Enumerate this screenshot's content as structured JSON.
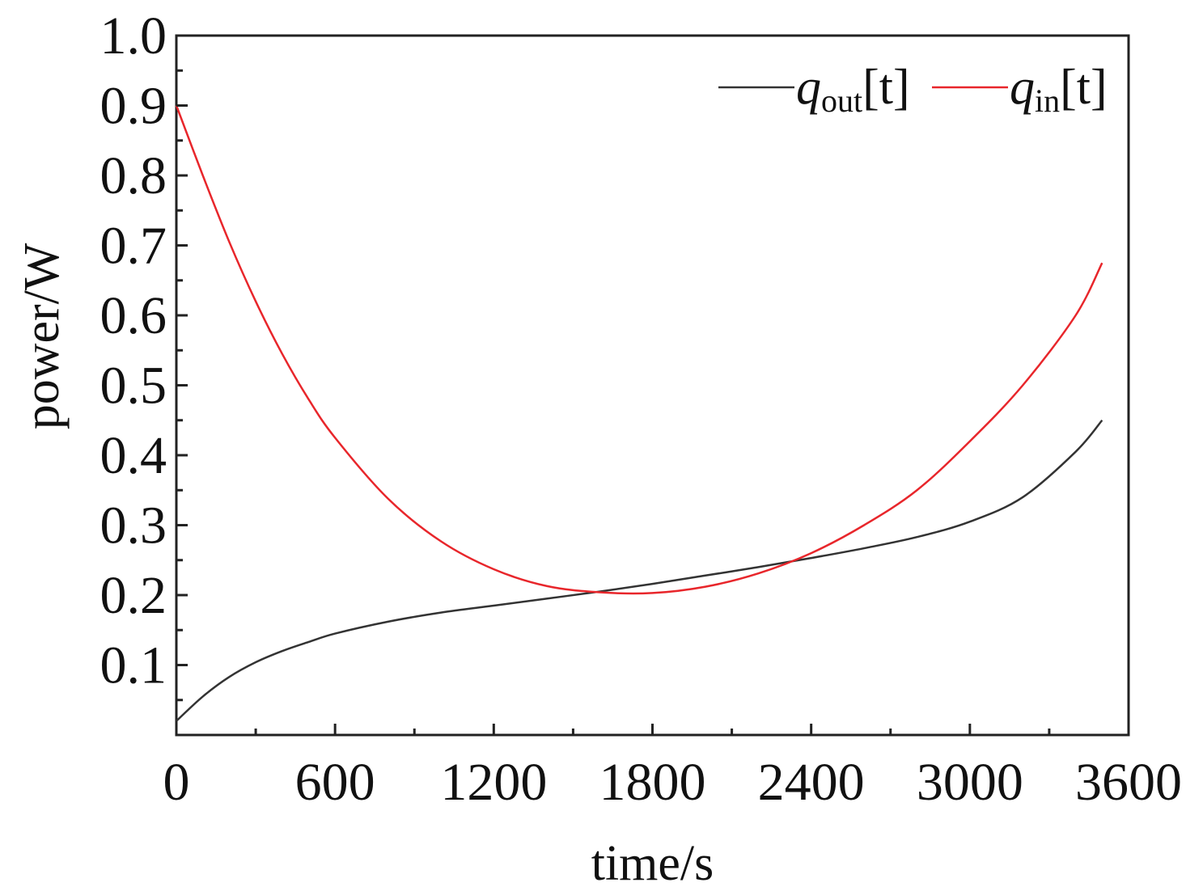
{
  "chart_data": {
    "type": "line",
    "title": "",
    "xlabel": "time/s",
    "ylabel": "power/W",
    "xlim": [
      0,
      3600
    ],
    "ylim": [
      0,
      1.0
    ],
    "x_ticks": [
      0,
      600,
      1200,
      1800,
      2400,
      3000,
      3600
    ],
    "x_tick_labels": [
      "0",
      "600",
      "1200",
      "1800",
      "2400",
      "3000",
      "3600"
    ],
    "y_ticks": [
      0.1,
      0.2,
      0.3,
      0.4,
      0.5,
      0.6,
      0.7,
      0.8,
      0.9,
      1.0
    ],
    "y_tick_labels": [
      "0.1",
      "0.2",
      "0.3",
      "0.4",
      "0.5",
      "0.6",
      "0.7",
      "0.8",
      "0.9",
      "1.0"
    ],
    "grid": false,
    "legend_position": "top-right",
    "series": [
      {
        "name": "q_out[t]",
        "legend_main": "q",
        "legend_sub": "out",
        "legend_tail": "[t]",
        "color": "#333333",
        "x": [
          0,
          100,
          200,
          300,
          400,
          500,
          600,
          800,
          1000,
          1200,
          1400,
          1600,
          1800,
          2000,
          2200,
          2400,
          2600,
          2800,
          3000,
          3200,
          3400,
          3500
        ],
        "y": [
          0.02,
          0.055,
          0.083,
          0.104,
          0.12,
          0.133,
          0.145,
          0.162,
          0.175,
          0.185,
          0.195,
          0.205,
          0.216,
          0.228,
          0.24,
          0.253,
          0.267,
          0.283,
          0.305,
          0.34,
          0.405,
          0.45
        ]
      },
      {
        "name": "q_in[t]",
        "legend_main": "q",
        "legend_sub": "in",
        "legend_tail": "[t]",
        "color": "#e8262b",
        "x": [
          0,
          100,
          200,
          300,
          400,
          500,
          600,
          800,
          1000,
          1200,
          1400,
          1600,
          1800,
          2000,
          2200,
          2400,
          2600,
          2800,
          3000,
          3200,
          3400,
          3500
        ],
        "y": [
          0.9,
          0.8,
          0.705,
          0.62,
          0.545,
          0.48,
          0.425,
          0.338,
          0.277,
          0.237,
          0.213,
          0.204,
          0.203,
          0.212,
          0.231,
          0.26,
          0.3,
          0.35,
          0.42,
          0.5,
          0.6,
          0.675
        ]
      }
    ]
  }
}
